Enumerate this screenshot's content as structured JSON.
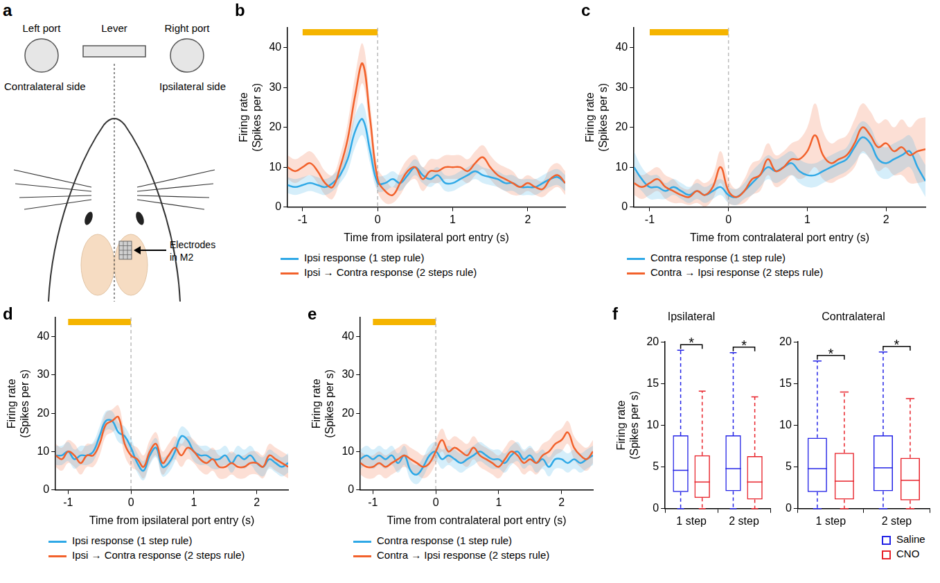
{
  "diagram": {
    "panel": "a",
    "left_port": "Left port",
    "lever": "Lever",
    "right_port": "Right port",
    "contralateral": "Contralateral side",
    "ipsilateral": "Ipsilateral side",
    "electrodes": [
      "Electrodes",
      "in M2"
    ]
  },
  "chart_data": [
    {
      "type": "line",
      "panel": "b",
      "x_label": "Time from ipsilateral port entry (s)",
      "y_label": [
        "Firing rate",
        "(Spikes per s)"
      ],
      "x": [
        -1.2,
        -1.1,
        -1.0,
        -0.9,
        -0.8,
        -0.7,
        -0.6,
        -0.5,
        -0.4,
        -0.3,
        -0.2,
        -0.1,
        0,
        0.1,
        0.2,
        0.3,
        0.4,
        0.5,
        0.6,
        0.7,
        0.8,
        0.9,
        1.0,
        1.1,
        1.2,
        1.3,
        1.4,
        1.5,
        1.6,
        1.7,
        1.8,
        1.9,
        2.0,
        2.1,
        2.2,
        2.3,
        2.4,
        2.5
      ],
      "xlim": [
        -1.2,
        2.5
      ],
      "xticks": [
        -1,
        0,
        1,
        2
      ],
      "ylim": [
        0,
        45
      ],
      "yticks": [
        0,
        10,
        20,
        30,
        40
      ],
      "grid": false,
      "legend": "bottom",
      "annotations": [
        {
          "type": "bar",
          "x": [
            -1,
            0
          ],
          "color": "#f5b400"
        },
        {
          "type": "vline",
          "x": 0
        }
      ],
      "series": [
        {
          "name": "Ipsi response (1 step rule)",
          "color": "#2ea8e6",
          "values": [
            5.5,
            5,
            5.5,
            6,
            5.5,
            5,
            6,
            8,
            12,
            19,
            22,
            14,
            6,
            6,
            7,
            6,
            8,
            10,
            8,
            7,
            8,
            6,
            6,
            7,
            8,
            9,
            8,
            7.5,
            7,
            6,
            6,
            5,
            5,
            5,
            6,
            7,
            7.5,
            6
          ],
          "error": [
            2,
            2,
            2,
            2,
            2,
            2,
            2,
            2,
            3,
            4,
            4,
            3,
            2,
            2,
            2,
            2,
            2,
            2,
            2,
            2,
            2,
            2,
            2,
            2,
            2,
            2,
            2,
            2,
            2,
            2,
            2,
            2,
            2,
            2,
            2,
            2,
            2,
            2
          ]
        },
        {
          "name": "Ipsi → Contra response (2 steps rule)",
          "color": "#f2612b",
          "values": [
            10,
            9,
            10,
            11,
            9,
            6,
            5,
            10,
            17,
            28,
            36,
            22,
            7,
            4,
            3,
            6,
            9,
            10,
            7,
            9,
            9,
            10,
            10,
            10,
            9,
            11,
            12.5,
            10,
            8,
            7,
            6,
            5,
            6,
            5,
            4.5,
            7,
            8,
            6
          ],
          "error": [
            3,
            3,
            3,
            3,
            3,
            3,
            3,
            3,
            4,
            5,
            5,
            4,
            3,
            3,
            2,
            3,
            3,
            3,
            3,
            3,
            3,
            3,
            3,
            3,
            3,
            3,
            3,
            3,
            3,
            3,
            3,
            2,
            2,
            2,
            2,
            3,
            3,
            3
          ]
        }
      ]
    },
    {
      "type": "line",
      "panel": "c",
      "x_label": "Time from contralateral port entry (s)",
      "y_label": [
        "Firing rate",
        "(Spikes per s)"
      ],
      "x": [
        -1.2,
        -1.1,
        -1.0,
        -0.9,
        -0.8,
        -0.7,
        -0.6,
        -0.5,
        -0.4,
        -0.3,
        -0.2,
        -0.1,
        0,
        0.1,
        0.2,
        0.3,
        0.4,
        0.5,
        0.6,
        0.7,
        0.8,
        0.9,
        1.0,
        1.1,
        1.2,
        1.3,
        1.4,
        1.5,
        1.6,
        1.7,
        1.8,
        1.9,
        2.0,
        2.1,
        2.2,
        2.3,
        2.4,
        2.5
      ],
      "xlim": [
        -1.2,
        2.5
      ],
      "xticks": [
        -1,
        0,
        1,
        2
      ],
      "ylim": [
        0,
        45
      ],
      "yticks": [
        0,
        10,
        20,
        30,
        40
      ],
      "grid": false,
      "legend": "bottom",
      "annotations": [
        {
          "type": "bar",
          "x": [
            -1,
            0
          ],
          "color": "#f5b400"
        },
        {
          "type": "vline",
          "x": 0
        }
      ],
      "series": [
        {
          "name": "Contra response (1 step rule)",
          "color": "#2ea8e6",
          "values": [
            10,
            7,
            5,
            5,
            4,
            5,
            4,
            3,
            4,
            3,
            4,
            5,
            3,
            2.5,
            4,
            6,
            8,
            10,
            9,
            10,
            11,
            9,
            8,
            8,
            9,
            10,
            11,
            12,
            15,
            17.5,
            16,
            12,
            11,
            12,
            13,
            14,
            10,
            6.5
          ],
          "error": [
            4,
            3,
            3,
            3,
            2,
            2,
            2,
            2,
            2,
            2,
            2,
            2,
            2,
            2,
            2,
            3,
            3,
            3,
            3,
            3,
            3,
            3,
            3,
            3,
            3,
            3,
            3,
            3,
            4,
            4,
            4,
            4,
            4,
            4,
            4,
            4,
            4,
            4
          ]
        },
        {
          "name": "Contra → Ipsi response (2 steps rule)",
          "color": "#f2612b",
          "values": [
            6,
            5,
            6,
            7,
            5,
            4,
            3,
            2.5,
            4,
            3,
            5,
            10,
            4,
            2.5,
            4,
            7,
            8,
            12,
            9,
            10,
            12,
            12,
            14,
            18,
            13,
            11,
            12,
            13,
            16,
            20,
            18,
            15,
            16,
            14,
            15,
            13,
            14,
            14.5
          ],
          "error": [
            3,
            3,
            3,
            3,
            3,
            3,
            2,
            2,
            3,
            3,
            3,
            4,
            3,
            2,
            3,
            4,
            4,
            4,
            4,
            4,
            4,
            5,
            6,
            8,
            6,
            5,
            5,
            5,
            6,
            6,
            6,
            6,
            6,
            6,
            7,
            7,
            8,
            8
          ]
        }
      ]
    },
    {
      "type": "line",
      "panel": "d",
      "x_label": "Time from ipsilateral port entry (s)",
      "y_label": [
        "Firing rate",
        "(Spikes per s)"
      ],
      "x": [
        -1.2,
        -1.1,
        -1.0,
        -0.9,
        -0.8,
        -0.7,
        -0.6,
        -0.5,
        -0.4,
        -0.3,
        -0.2,
        -0.1,
        0,
        0.1,
        0.2,
        0.3,
        0.4,
        0.5,
        0.6,
        0.7,
        0.8,
        0.9,
        1.0,
        1.1,
        1.2,
        1.3,
        1.4,
        1.5,
        1.6,
        1.7,
        1.8,
        1.9,
        2.0,
        2.1,
        2.2,
        2.3,
        2.4,
        2.5
      ],
      "xlim": [
        -1.2,
        2.5
      ],
      "xticks": [
        -1,
        0,
        1,
        2
      ],
      "ylim": [
        0,
        45
      ],
      "yticks": [
        0,
        10,
        20,
        30,
        40
      ],
      "grid": false,
      "legend": "bottom",
      "annotations": [
        {
          "type": "bar",
          "x": [
            -1,
            0
          ],
          "color": "#f5b400"
        },
        {
          "type": "vline",
          "x": 0
        }
      ],
      "series": [
        {
          "name": "Ipsi response (1 step rule)",
          "color": "#2ea8e6",
          "values": [
            9,
            9,
            10,
            8,
            9,
            9,
            10,
            14,
            18,
            18,
            15,
            14,
            11,
            7,
            5,
            9,
            11,
            6,
            7,
            10,
            14,
            13,
            10,
            9,
            9,
            8,
            8,
            9,
            7,
            9,
            8,
            9,
            7,
            6,
            8,
            7,
            6,
            7
          ],
          "error": [
            2.5,
            2.5,
            2.5,
            2.5,
            2.5,
            2.5,
            2.5,
            2.5,
            2.5,
            2.5,
            2.5,
            2.5,
            2.5,
            2.5,
            2.5,
            2.5,
            2.5,
            2.5,
            2.5,
            2.5,
            2.5,
            2.5,
            2.5,
            2.5,
            2.5,
            2.5,
            2.5,
            2.5,
            2.5,
            2.5,
            2.5,
            2.5,
            2.5,
            2.5,
            2.5,
            2.5,
            2.5,
            2.5
          ]
        },
        {
          "name": "Ipsi → Contra response (2 steps rule)",
          "color": "#f2612b",
          "values": [
            9,
            8,
            10,
            9,
            7,
            9,
            9,
            12,
            17,
            18,
            19,
            12,
            9,
            8,
            6,
            10,
            12,
            7,
            9,
            11,
            9,
            11,
            10,
            8,
            7,
            8,
            6,
            6,
            7,
            6,
            6,
            7,
            7,
            6,
            9,
            8,
            7,
            6
          ],
          "error": [
            3,
            3,
            3,
            3,
            3,
            3,
            3,
            3,
            3,
            3,
            3,
            3,
            3,
            3,
            3,
            3,
            3,
            3,
            3,
            3,
            3,
            3,
            3,
            3,
            3,
            3,
            3,
            3,
            3,
            3,
            3,
            3,
            3,
            3,
            3,
            3,
            3,
            3
          ]
        }
      ]
    },
    {
      "type": "line",
      "panel": "e",
      "x_label": "Time from contralateral port entry (s)",
      "y_label": [
        "Firing rate",
        "(Spikes per s)"
      ],
      "x": [
        -1.2,
        -1.1,
        -1.0,
        -0.9,
        -0.8,
        -0.7,
        -0.6,
        -0.5,
        -0.4,
        -0.3,
        -0.2,
        -0.1,
        0,
        0.1,
        0.2,
        0.3,
        0.4,
        0.5,
        0.6,
        0.7,
        0.8,
        0.9,
        1.0,
        1.1,
        1.2,
        1.3,
        1.4,
        1.5,
        1.6,
        1.7,
        1.8,
        1.9,
        2.0,
        2.1,
        2.2,
        2.3,
        2.4,
        2.5
      ],
      "xlim": [
        -1.2,
        2.5
      ],
      "xticks": [
        -1,
        0,
        1,
        2
      ],
      "ylim": [
        0,
        45
      ],
      "yticks": [
        0,
        10,
        20,
        30,
        40
      ],
      "grid": false,
      "legend": "bottom",
      "annotations": [
        {
          "type": "bar",
          "x": [
            -1,
            0
          ],
          "color": "#f5b400"
        },
        {
          "type": "vline",
          "x": 0
        }
      ],
      "series": [
        {
          "name": "Contra response (1 step rule)",
          "color": "#2ea8e6",
          "values": [
            8,
            9,
            8,
            9,
            8,
            9,
            7,
            9,
            5,
            4,
            6,
            9,
            10,
            8,
            9,
            8,
            7,
            8,
            9,
            10,
            9,
            8,
            8,
            7,
            9,
            10,
            8,
            9,
            7,
            8,
            6,
            8,
            8,
            7,
            8,
            7,
            8,
            9
          ],
          "error": [
            2.5,
            2.5,
            2.5,
            2.5,
            2.5,
            2.5,
            2.5,
            2.5,
            2.5,
            2.5,
            2.5,
            2.5,
            2.5,
            2.5,
            2.5,
            2.5,
            2.5,
            2.5,
            2.5,
            2.5,
            2.5,
            2.5,
            2.5,
            2.5,
            2.5,
            2.5,
            2.5,
            2.5,
            2.5,
            2.5,
            2.5,
            2.5,
            2.5,
            2.5,
            2.5,
            2.5,
            2.5,
            2.5
          ]
        },
        {
          "name": "Contra → Ipsi response (2 steps rule)",
          "color": "#f2612b",
          "values": [
            7,
            6,
            6,
            7,
            6,
            7,
            8,
            9,
            8,
            7,
            6,
            7,
            10,
            13,
            10,
            11,
            10,
            9,
            11,
            9,
            8,
            7,
            6,
            8,
            10,
            9,
            7,
            8,
            7,
            9,
            10,
            12,
            13,
            15,
            11,
            9,
            8,
            10
          ],
          "error": [
            3,
            3,
            3,
            3,
            3,
            3,
            3,
            3,
            3,
            3,
            3,
            3,
            3,
            3,
            3,
            3,
            3,
            3,
            3,
            3,
            3,
            3,
            3,
            3,
            3,
            3,
            3,
            3,
            3,
            3,
            3,
            3,
            3,
            3,
            3,
            3,
            3,
            3
          ]
        }
      ]
    },
    {
      "type": "box",
      "panel": "f",
      "title": "Ipsilateral",
      "y_label": [
        "Firing rate",
        "(Spikes per s)"
      ],
      "categories": [
        "1 step",
        "2 step"
      ],
      "ylim": [
        0,
        20
      ],
      "yticks": [
        0,
        5,
        10,
        15,
        20
      ],
      "grid": false,
      "series": [
        {
          "name": "Saline",
          "color": "#2323e6",
          "min": [
            0,
            0
          ],
          "q1": [
            2.0,
            2.1
          ],
          "median": [
            4.6,
            4.8
          ],
          "q3": [
            8.8,
            8.8
          ],
          "max": [
            19.0,
            18.7
          ]
        },
        {
          "name": "CNO",
          "color": "#e8222a",
          "min": [
            0,
            0
          ],
          "q1": [
            1.3,
            1.1
          ],
          "median": [
            3.2,
            3.2
          ],
          "q3": [
            6.4,
            6.3
          ],
          "max": [
            14.1,
            13.4
          ]
        }
      ],
      "significance": [
        {
          "category": "1 step",
          "label": "*"
        },
        {
          "category": "2 step",
          "label": "*"
        }
      ]
    },
    {
      "type": "box",
      "title": "Contralateral",
      "categories": [
        "1 step",
        "2 step"
      ],
      "ylim": [
        0,
        20
      ],
      "yticks": [
        0,
        5,
        10,
        15,
        20
      ],
      "grid": false,
      "legend": "bottom right",
      "series": [
        {
          "name": "Saline",
          "color": "#2323e6",
          "min": [
            0,
            0
          ],
          "q1": [
            2.0,
            2.1
          ],
          "median": [
            4.8,
            4.9
          ],
          "q3": [
            8.5,
            8.8
          ],
          "max": [
            17.7,
            18.8
          ]
        },
        {
          "name": "CNO",
          "color": "#e8222a",
          "min": [
            0,
            0
          ],
          "q1": [
            1.1,
            1.0
          ],
          "median": [
            3.3,
            3.4
          ],
          "q3": [
            6.7,
            6.1
          ],
          "max": [
            14.0,
            13.2
          ]
        }
      ],
      "significance": [
        {
          "category": "1 step",
          "label": "*"
        },
        {
          "category": "2 step",
          "label": "*"
        }
      ]
    }
  ]
}
